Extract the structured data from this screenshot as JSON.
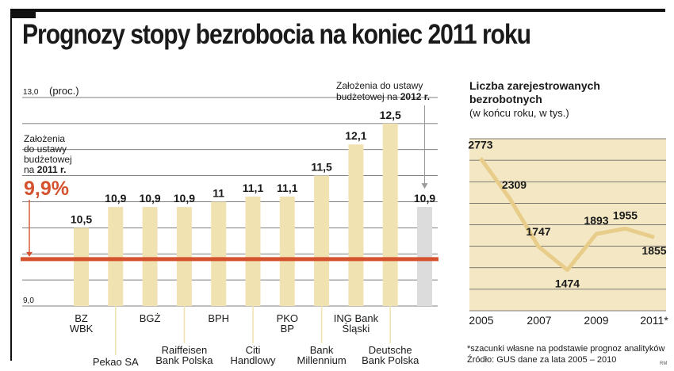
{
  "title": "Prognozy stopy bezrobocia na koniec 2011 roku",
  "colors": {
    "bar": "#f1e2b2",
    "grey_bar": "#dcdcdc",
    "highlight": "#d4522e",
    "line": "#e8cd8a",
    "area": "#f4e8c4",
    "grid": "#555555"
  },
  "chart_data": [
    {
      "type": "bar",
      "unit_label": "(proc.)",
      "ylim": [
        9.0,
        13.0
      ],
      "tick_labels": [
        "13,0",
        "9,0"
      ],
      "categories": [
        [
          "BZ",
          "WBK"
        ],
        [
          "Pekao SA"
        ],
        [
          "BGŻ"
        ],
        [
          "Raiffeisen",
          "Bank Polska"
        ],
        [
          "BPH"
        ],
        [
          "Citi",
          "Handlowy"
        ],
        [
          "PKO",
          "BP"
        ],
        [
          "Bank",
          "Millennium"
        ],
        [
          "ING Bank",
          "Śląski"
        ],
        [
          "Deutsche",
          "Bank Polska"
        ]
      ],
      "values": [
        10.5,
        10.9,
        10.9,
        10.9,
        11.0,
        11.1,
        11.1,
        11.5,
        12.1,
        12.5
      ],
      "value_labels": [
        "10,5",
        "10,9",
        "10,9",
        "10,9",
        "11",
        "11,1",
        "11,1",
        "11,5",
        "12,1",
        "12,5"
      ],
      "reference_bar": {
        "value": 10.9,
        "value_label": "10,9",
        "annotation": [
          "Założenia do ustawy",
          "budżetowej na ",
          "2012 r."
        ]
      },
      "reference_line": {
        "value": 9.9,
        "value_label": "9,9%",
        "annotation": [
          "Założenia",
          "do ustawy",
          "budżetowej",
          "na ",
          "2011 r."
        ]
      }
    },
    {
      "type": "area",
      "title": [
        "Liczba zarejestrowanych",
        "bezrobotnych"
      ],
      "subtitle": "(w końcu roku, w tys.)",
      "x": [
        "2005",
        "2006",
        "2007",
        "2008",
        "2009",
        "2010",
        "2011*"
      ],
      "x_tick_labels": [
        "2005",
        "2007",
        "2009",
        "2011*"
      ],
      "values": [
        2773,
        2309,
        1747,
        1474,
        1893,
        1955,
        1855
      ],
      "value_labels": [
        "2773",
        "2309",
        "1747",
        "1474",
        "1893",
        "1955",
        "1855"
      ]
    }
  ],
  "notes": {
    "footnote": "*szacunki własne na podstawie prognoz analityków",
    "source": "Źródło: GUS dane za lata 2005 – 2010",
    "mark": "RM"
  }
}
